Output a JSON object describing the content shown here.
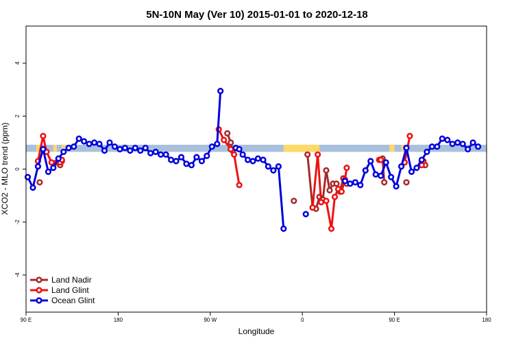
{
  "chart_data": {
    "type": "line",
    "title": "5N-10N May (Ver 10)   2015-01-01 to 2020-12-18",
    "xlabel": "Longitude",
    "ylabel": "XCO2 - MLO trend (ppm)",
    "xlim": [
      -90,
      180
    ],
    "ylim": [
      -5.4,
      5.4
    ],
    "x_ticks": [
      {
        "value": -90,
        "label": "90 E"
      },
      {
        "value": -36,
        "label": "180"
      },
      {
        "value": 18,
        "label": "90 W"
      },
      {
        "value": 72,
        "label": "0"
      },
      {
        "value": 126,
        "label": "90 E"
      },
      {
        "value": 180,
        "label": "180"
      }
    ],
    "y_ticks": [
      {
        "value": -4,
        "label": "-4"
      },
      {
        "value": -2,
        "label": "-2"
      },
      {
        "value": 0,
        "label": "0"
      },
      {
        "value": 2,
        "label": "2"
      },
      {
        "value": 4,
        "label": "4"
      }
    ],
    "legend_position": "bottom-left",
    "band": {
      "y_bottom": 0.65,
      "y_top": 0.92,
      "base_color": "#a9c0dd",
      "land_color": "#ffd966",
      "land_segments": [
        [
          -84,
          -82
        ],
        [
          -74,
          -72
        ],
        [
          -69,
          -67
        ],
        [
          61,
          82
        ],
        [
          123,
          126
        ],
        [
          130,
          131
        ]
      ]
    },
    "series": [
      {
        "name": "Land Nadir",
        "color": "#a52a2a",
        "segments": [
          [
            [
              -82,
              -0.5
            ]
          ],
          [
            [
              -70,
              0.15
            ],
            [
              -69,
              0.3
            ]
          ],
          [
            [
              28,
              1.35
            ],
            [
              30,
              1.0
            ],
            [
              31,
              0.7
            ]
          ],
          [
            [
              67,
              -1.2
            ]
          ],
          [
            [
              75,
              0.55
            ],
            [
              78,
              -1.45
            ],
            [
              80,
              -1.5
            ],
            [
              82,
              -1.05
            ],
            [
              84,
              -1.15
            ],
            [
              86,
              -0.05
            ],
            [
              88,
              -0.8
            ],
            [
              90,
              -0.55
            ],
            [
              92,
              -0.55
            ],
            [
              94,
              -0.85
            ],
            [
              96,
              -0.35
            ],
            [
              98,
              -0.55
            ]
          ],
          [
            [
              119,
              0.4
            ],
            [
              120,
              -0.5
            ]
          ],
          [
            [
              133,
              -0.5
            ]
          ],
          [
            [
              142,
              0.3
            ],
            [
              144,
              0.15
            ]
          ]
        ]
      },
      {
        "name": "Land Glint",
        "color": "#ee1111",
        "segments": [
          [
            [
              -83,
              0.3
            ],
            [
              -80,
              1.25
            ],
            [
              -78,
              0.65
            ],
            [
              -75,
              0.25
            ],
            [
              -72,
              0.25
            ],
            [
              -70,
              0.25
            ],
            [
              -69,
              0.35
            ]
          ],
          [
            [
              23,
              1.5
            ],
            [
              26,
              1.1
            ],
            [
              30,
              0.75
            ],
            [
              32,
              0.55
            ],
            [
              35,
              -0.6
            ]
          ],
          [
            [
              78,
              -1.45
            ],
            [
              81,
              0.55
            ],
            [
              83,
              -1.25
            ],
            [
              86,
              -1.2
            ],
            [
              89,
              -2.25
            ],
            [
              91,
              -1.05
            ],
            [
              93,
              -0.75
            ],
            [
              95,
              -0.85
            ],
            [
              97,
              -0.4
            ],
            [
              98,
              0.05
            ]
          ],
          [
            [
              117,
              0.35
            ],
            [
              118,
              0.35
            ]
          ],
          [
            [
              132,
              0.25
            ],
            [
              135,
              1.25
            ]
          ],
          [
            [
              142,
              0.15
            ],
            [
              143,
              0.3
            ]
          ]
        ]
      },
      {
        "name": "Ocean Glint",
        "color": "#0000dd",
        "segments": [
          [
            [
              -89,
              -0.3
            ],
            [
              -86,
              -0.7
            ],
            [
              -83,
              0.1
            ],
            [
              -80,
              0.75
            ],
            [
              -77,
              -0.1
            ],
            [
              -74,
              0.05
            ],
            [
              -71,
              0.4
            ],
            [
              -68,
              0.65
            ],
            [
              -65,
              0.8
            ],
            [
              -62,
              0.85
            ],
            [
              -59,
              1.15
            ],
            [
              -56,
              1.05
            ],
            [
              -53,
              0.95
            ],
            [
              -50,
              1.0
            ],
            [
              -47,
              0.95
            ],
            [
              -44,
              0.7
            ],
            [
              -41,
              1.0
            ],
            [
              -38,
              0.85
            ],
            [
              -35,
              0.75
            ],
            [
              -32,
              0.8
            ],
            [
              -29,
              0.7
            ],
            [
              -26,
              0.8
            ],
            [
              -23,
              0.7
            ],
            [
              -20,
              0.8
            ],
            [
              -17,
              0.6
            ],
            [
              -14,
              0.65
            ],
            [
              -11,
              0.55
            ],
            [
              -8,
              0.55
            ],
            [
              -5,
              0.35
            ],
            [
              -2,
              0.3
            ],
            [
              1,
              0.45
            ],
            [
              4,
              0.2
            ],
            [
              7,
              0.15
            ],
            [
              10,
              0.45
            ],
            [
              13,
              0.3
            ],
            [
              16,
              0.5
            ],
            [
              19,
              0.85
            ],
            [
              22,
              0.95
            ],
            [
              24,
              2.95
            ]
          ],
          [
            [
              33,
              0.8
            ],
            [
              35,
              0.75
            ],
            [
              37,
              0.55
            ],
            [
              40,
              0.35
            ],
            [
              43,
              0.3
            ],
            [
              46,
              0.4
            ],
            [
              49,
              0.35
            ],
            [
              52,
              0.1
            ],
            [
              55,
              -0.05
            ],
            [
              58,
              0.1
            ],
            [
              61,
              -2.25
            ]
          ],
          [
            [
              74,
              -1.7
            ]
          ],
          [
            [
              97,
              -0.45
            ],
            [
              100,
              -0.55
            ],
            [
              103,
              -0.5
            ],
            [
              106,
              -0.6
            ],
            [
              109,
              -0.05
            ],
            [
              112,
              0.3
            ],
            [
              115,
              -0.2
            ],
            [
              118,
              -0.25
            ],
            [
              121,
              0.25
            ],
            [
              124,
              -0.3
            ],
            [
              127,
              -0.65
            ],
            [
              130,
              0.1
            ],
            [
              133,
              0.8
            ],
            [
              136,
              -0.1
            ],
            [
              139,
              0.05
            ],
            [
              142,
              0.35
            ],
            [
              145,
              0.65
            ],
            [
              148,
              0.85
            ],
            [
              151,
              0.85
            ],
            [
              154,
              1.15
            ],
            [
              157,
              1.1
            ],
            [
              160,
              0.95
            ],
            [
              163,
              1.0
            ],
            [
              166,
              0.95
            ],
            [
              169,
              0.75
            ],
            [
              172,
              1.0
            ],
            [
              175,
              0.85
            ]
          ]
        ]
      }
    ]
  }
}
